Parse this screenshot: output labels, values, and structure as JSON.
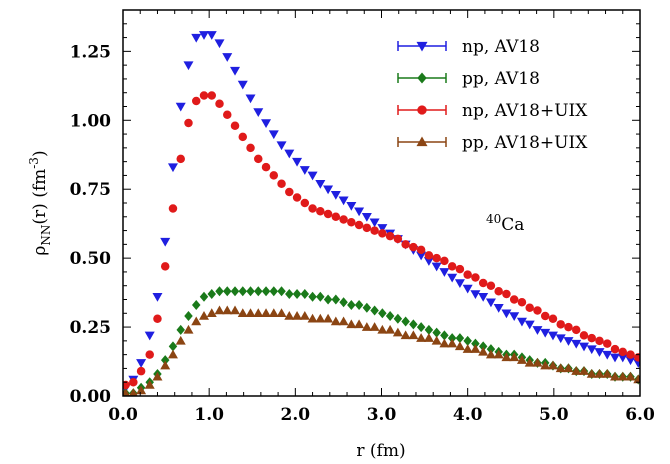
{
  "chart_data": {
    "type": "scatter",
    "xlabel": "r (fm)",
    "ylabel_main": "ρ",
    "ylabel_sub": "NN",
    "ylabel_rest": "(r) (fm",
    "ylabel_sup": "-3",
    "ylabel_end": ")",
    "xlim": [
      0,
      6
    ],
    "ylim": [
      0,
      1.4
    ],
    "x_ticks": [
      "0.0",
      "1.0",
      "2.0",
      "3.0",
      "4.0",
      "5.0",
      "6.0"
    ],
    "x_tick_values": [
      0,
      1,
      2,
      3,
      4,
      5,
      6
    ],
    "y_ticks": [
      "0.00",
      "0.25",
      "0.50",
      "0.75",
      "1.00",
      "1.25"
    ],
    "y_tick_values": [
      0,
      0.25,
      0.5,
      0.75,
      1.0,
      1.25
    ],
    "annotation": {
      "sup": "40",
      "text": "Ca"
    },
    "legend_placement": "top-right",
    "x": [
      0.03,
      0.12,
      0.21,
      0.31,
      0.4,
      0.49,
      0.58,
      0.67,
      0.76,
      0.85,
      0.94,
      1.03,
      1.12,
      1.21,
      1.3,
      1.39,
      1.48,
      1.57,
      1.66,
      1.75,
      1.84,
      1.93,
      2.02,
      2.11,
      2.2,
      2.29,
      2.38,
      2.47,
      2.56,
      2.65,
      2.74,
      2.83,
      2.92,
      3.01,
      3.1,
      3.19,
      3.28,
      3.37,
      3.46,
      3.55,
      3.64,
      3.73,
      3.82,
      3.91,
      4.0,
      4.09,
      4.18,
      4.27,
      4.36,
      4.45,
      4.54,
      4.63,
      4.72,
      4.81,
      4.9,
      4.99,
      5.08,
      5.17,
      5.26,
      5.35,
      5.44,
      5.53,
      5.62,
      5.71,
      5.8,
      5.89,
      5.98
    ],
    "series": [
      {
        "name": "np, AV18",
        "marker": "triangle-down",
        "color": "#1f1fe0",
        "values": [
          0.03,
          0.06,
          0.12,
          0.22,
          0.36,
          0.56,
          0.83,
          1.05,
          1.2,
          1.3,
          1.31,
          1.31,
          1.28,
          1.23,
          1.18,
          1.13,
          1.08,
          1.03,
          0.99,
          0.95,
          0.91,
          0.88,
          0.85,
          0.82,
          0.8,
          0.77,
          0.75,
          0.73,
          0.71,
          0.69,
          0.67,
          0.65,
          0.63,
          0.61,
          0.59,
          0.57,
          0.55,
          0.53,
          0.51,
          0.49,
          0.47,
          0.45,
          0.43,
          0.41,
          0.39,
          0.37,
          0.36,
          0.34,
          0.32,
          0.3,
          0.29,
          0.27,
          0.26,
          0.24,
          0.23,
          0.22,
          0.21,
          0.2,
          0.19,
          0.18,
          0.17,
          0.16,
          0.15,
          0.14,
          0.14,
          0.13,
          0.12
        ]
      },
      {
        "name": "pp, AV18",
        "marker": "diamond",
        "color": "#1a7a1a",
        "values": [
          0.01,
          0.01,
          0.03,
          0.05,
          0.08,
          0.13,
          0.18,
          0.24,
          0.29,
          0.33,
          0.36,
          0.37,
          0.38,
          0.38,
          0.38,
          0.38,
          0.38,
          0.38,
          0.38,
          0.38,
          0.38,
          0.37,
          0.37,
          0.37,
          0.36,
          0.36,
          0.35,
          0.35,
          0.34,
          0.33,
          0.33,
          0.32,
          0.31,
          0.3,
          0.29,
          0.28,
          0.27,
          0.26,
          0.25,
          0.24,
          0.23,
          0.22,
          0.21,
          0.21,
          0.2,
          0.19,
          0.18,
          0.17,
          0.16,
          0.15,
          0.15,
          0.14,
          0.13,
          0.12,
          0.12,
          0.11,
          0.1,
          0.1,
          0.09,
          0.09,
          0.08,
          0.08,
          0.08,
          0.07,
          0.07,
          0.07,
          0.06
        ]
      },
      {
        "name": "np, AV18+UIX",
        "marker": "circle",
        "color": "#e01a1a",
        "values": [
          0.04,
          0.05,
          0.09,
          0.15,
          0.28,
          0.47,
          0.68,
          0.86,
          0.99,
          1.07,
          1.09,
          1.09,
          1.06,
          1.02,
          0.98,
          0.94,
          0.9,
          0.86,
          0.83,
          0.8,
          0.77,
          0.74,
          0.72,
          0.7,
          0.68,
          0.67,
          0.66,
          0.65,
          0.64,
          0.63,
          0.62,
          0.61,
          0.6,
          0.59,
          0.58,
          0.57,
          0.55,
          0.54,
          0.53,
          0.51,
          0.5,
          0.49,
          0.47,
          0.46,
          0.44,
          0.43,
          0.41,
          0.4,
          0.38,
          0.37,
          0.35,
          0.34,
          0.32,
          0.31,
          0.29,
          0.28,
          0.26,
          0.25,
          0.24,
          0.22,
          0.21,
          0.2,
          0.19,
          0.17,
          0.16,
          0.15,
          0.14
        ]
      },
      {
        "name": "pp, AV18+UIX",
        "marker": "triangle-up",
        "color": "#8b4513",
        "values": [
          0.01,
          0.01,
          0.02,
          0.04,
          0.07,
          0.11,
          0.15,
          0.2,
          0.24,
          0.27,
          0.29,
          0.3,
          0.31,
          0.31,
          0.31,
          0.3,
          0.3,
          0.3,
          0.3,
          0.3,
          0.3,
          0.29,
          0.29,
          0.29,
          0.28,
          0.28,
          0.28,
          0.27,
          0.27,
          0.26,
          0.26,
          0.25,
          0.25,
          0.24,
          0.24,
          0.23,
          0.22,
          0.22,
          0.21,
          0.21,
          0.2,
          0.19,
          0.19,
          0.18,
          0.17,
          0.17,
          0.16,
          0.15,
          0.15,
          0.14,
          0.14,
          0.13,
          0.12,
          0.12,
          0.11,
          0.11,
          0.1,
          0.1,
          0.09,
          0.09,
          0.08,
          0.08,
          0.08,
          0.07,
          0.07,
          0.07,
          0.06
        ]
      }
    ]
  }
}
